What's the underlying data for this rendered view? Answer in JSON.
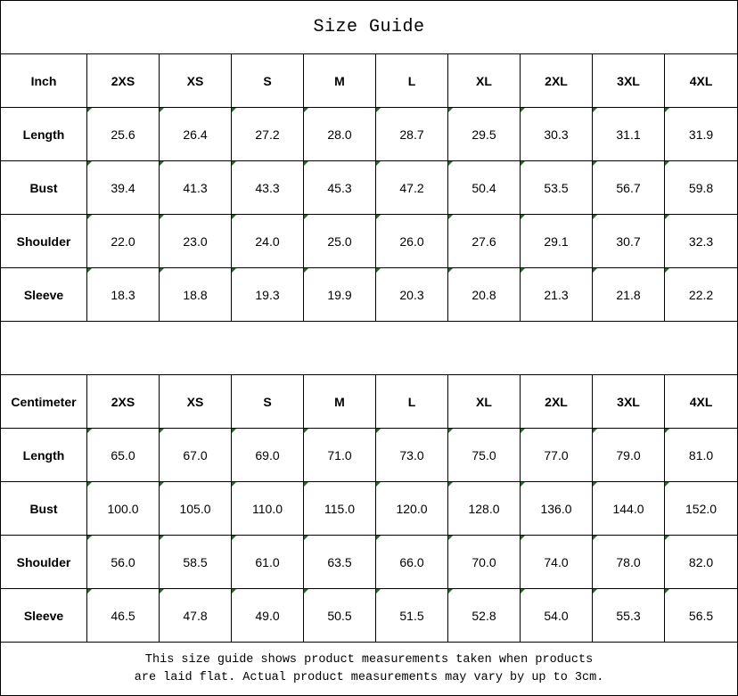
{
  "title": "Size Guide",
  "sizes": [
    "2XS",
    "XS",
    "S",
    "M",
    "L",
    "XL",
    "2XL",
    "3XL",
    "4XL"
  ],
  "accent_marker_color": "#0a7a0a",
  "tables": [
    {
      "unit": "Inch",
      "rows": [
        {
          "label": "Length",
          "values": [
            "25.6",
            "26.4",
            "27.2",
            "28.0",
            "28.7",
            "29.5",
            "30.3",
            "31.1",
            "31.9"
          ]
        },
        {
          "label": "Bust",
          "values": [
            "39.4",
            "41.3",
            "43.3",
            "45.3",
            "47.2",
            "50.4",
            "53.5",
            "56.7",
            "59.8"
          ]
        },
        {
          "label": "Shoulder",
          "values": [
            "22.0",
            "23.0",
            "24.0",
            "25.0",
            "26.0",
            "27.6",
            "29.1",
            "30.7",
            "32.3"
          ]
        },
        {
          "label": "Sleeve",
          "values": [
            "18.3",
            "18.8",
            "19.3",
            "19.9",
            "20.3",
            "20.8",
            "21.3",
            "21.8",
            "22.2"
          ]
        }
      ]
    },
    {
      "unit": "Centimeter",
      "rows": [
        {
          "label": "Length",
          "values": [
            "65.0",
            "67.0",
            "69.0",
            "71.0",
            "73.0",
            "75.0",
            "77.0",
            "79.0",
            "81.0"
          ]
        },
        {
          "label": "Bust",
          "values": [
            "100.0",
            "105.0",
            "110.0",
            "115.0",
            "120.0",
            "128.0",
            "136.0",
            "144.0",
            "152.0"
          ]
        },
        {
          "label": "Shoulder",
          "values": [
            "56.0",
            "58.5",
            "61.0",
            "63.5",
            "66.0",
            "70.0",
            "74.0",
            "78.0",
            "82.0"
          ]
        },
        {
          "label": "Sleeve",
          "values": [
            "46.5",
            "47.8",
            "49.0",
            "50.5",
            "51.5",
            "52.8",
            "54.0",
            "55.3",
            "56.5"
          ]
        }
      ]
    }
  ],
  "footer": {
    "line1": "This size guide shows product measurements taken when products",
    "line2": "are laid flat. Actual product measurements may vary by up to 3cm."
  }
}
